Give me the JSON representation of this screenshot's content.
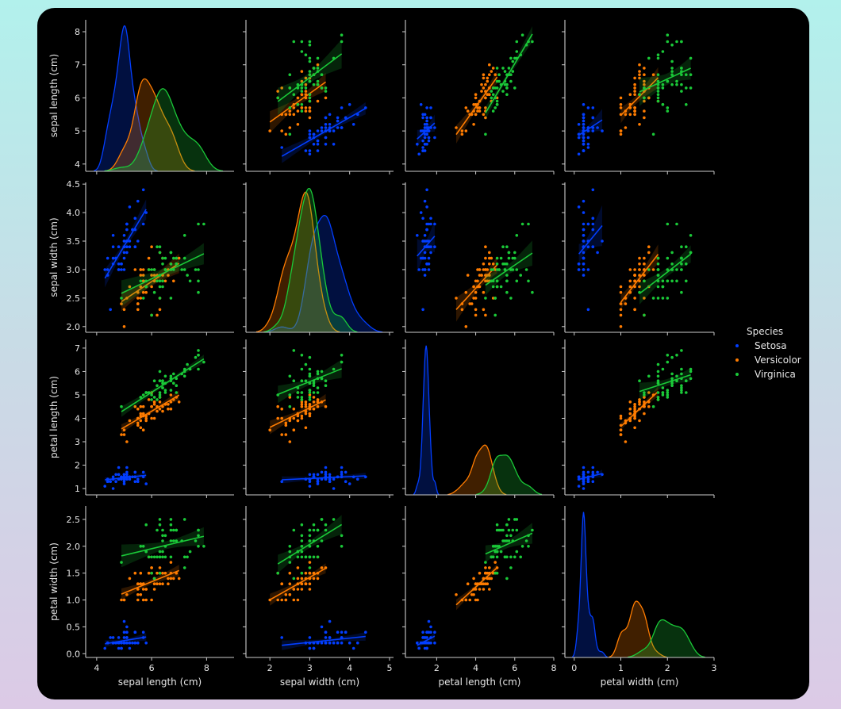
{
  "chart_data": {
    "type": "scatter",
    "kind": "pairplot",
    "diagonal": "kde",
    "regression_lines": true,
    "grid": false,
    "legend": {
      "title": "Species",
      "placement": "right"
    },
    "variables": [
      {
        "label": "sepal length (cm)",
        "ticks": [
          4,
          5,
          6,
          7,
          8
        ],
        "xticks": [
          4,
          6,
          8
        ],
        "lim": [
          3.6,
          9.0
        ],
        "ylim": [
          3.78,
          8.36
        ]
      },
      {
        "label": "sepal width (cm)",
        "ticks": [
          "2.0",
          "2.5",
          "3.0",
          "3.5",
          "4.0",
          "4.5"
        ],
        "xticks": [
          2,
          3,
          4,
          5
        ],
        "lim": [
          1.4,
          5.1
        ],
        "ylim": [
          1.9,
          4.53
        ]
      },
      {
        "label": "petal length (cm)",
        "ticks": [
          1,
          2,
          3,
          4,
          5,
          6,
          7
        ],
        "xticks": [
          2,
          4,
          6,
          8
        ],
        "lim": [
          0.4,
          8.0
        ],
        "ylim": [
          0.73,
          7.37
        ]
      },
      {
        "label": "petal width (cm)",
        "ticks": [
          "0.0",
          "0.5",
          "1.0",
          "1.5",
          "2.0",
          "2.5"
        ],
        "xticks": [
          0,
          1,
          2,
          3
        ],
        "lim": [
          -0.2,
          3.0
        ],
        "ylim": [
          -0.07,
          2.75
        ]
      }
    ],
    "series": [
      {
        "name": "Setosa",
        "color": "#023eff",
        "points": [
          [
            5.1,
            3.5,
            1.4,
            0.2
          ],
          [
            4.9,
            3.0,
            1.4,
            0.2
          ],
          [
            4.7,
            3.2,
            1.3,
            0.2
          ],
          [
            4.6,
            3.1,
            1.5,
            0.2
          ],
          [
            5.0,
            3.6,
            1.4,
            0.2
          ],
          [
            5.4,
            3.9,
            1.7,
            0.4
          ],
          [
            4.6,
            3.4,
            1.4,
            0.3
          ],
          [
            5.0,
            3.4,
            1.5,
            0.2
          ],
          [
            4.4,
            2.9,
            1.4,
            0.2
          ],
          [
            4.9,
            3.1,
            1.5,
            0.1
          ],
          [
            5.4,
            3.7,
            1.5,
            0.2
          ],
          [
            4.8,
            3.4,
            1.6,
            0.2
          ],
          [
            4.8,
            3.0,
            1.4,
            0.1
          ],
          [
            4.3,
            3.0,
            1.1,
            0.1
          ],
          [
            5.8,
            4.0,
            1.2,
            0.2
          ],
          [
            5.7,
            4.4,
            1.5,
            0.4
          ],
          [
            5.4,
            3.9,
            1.3,
            0.4
          ],
          [
            5.1,
            3.5,
            1.4,
            0.3
          ],
          [
            5.7,
            3.8,
            1.7,
            0.3
          ],
          [
            5.1,
            3.8,
            1.5,
            0.3
          ],
          [
            5.4,
            3.4,
            1.7,
            0.2
          ],
          [
            5.1,
            3.7,
            1.5,
            0.4
          ],
          [
            4.6,
            3.6,
            1.0,
            0.2
          ],
          [
            5.1,
            3.3,
            1.7,
            0.5
          ],
          [
            4.8,
            3.4,
            1.9,
            0.2
          ],
          [
            5.0,
            3.0,
            1.6,
            0.2
          ],
          [
            5.0,
            3.4,
            1.6,
            0.4
          ],
          [
            5.2,
            3.5,
            1.5,
            0.2
          ],
          [
            5.2,
            3.4,
            1.4,
            0.2
          ],
          [
            4.7,
            3.2,
            1.6,
            0.2
          ],
          [
            4.8,
            3.1,
            1.6,
            0.2
          ],
          [
            5.4,
            3.4,
            1.5,
            0.4
          ],
          [
            5.2,
            4.1,
            1.5,
            0.1
          ],
          [
            5.5,
            4.2,
            1.4,
            0.2
          ],
          [
            4.9,
            3.1,
            1.5,
            0.1
          ],
          [
            5.0,
            3.2,
            1.2,
            0.2
          ],
          [
            5.5,
            3.5,
            1.3,
            0.2
          ],
          [
            4.9,
            3.1,
            1.5,
            0.1
          ],
          [
            4.4,
            3.0,
            1.3,
            0.2
          ],
          [
            5.1,
            3.4,
            1.5,
            0.2
          ],
          [
            5.0,
            3.5,
            1.3,
            0.3
          ],
          [
            4.5,
            2.3,
            1.3,
            0.3
          ],
          [
            4.4,
            3.2,
            1.3,
            0.2
          ],
          [
            5.0,
            3.5,
            1.6,
            0.6
          ],
          [
            5.1,
            3.8,
            1.9,
            0.4
          ],
          [
            4.8,
            3.0,
            1.4,
            0.3
          ],
          [
            5.1,
            3.8,
            1.6,
            0.2
          ],
          [
            4.6,
            3.2,
            1.4,
            0.2
          ],
          [
            5.3,
            3.7,
            1.5,
            0.2
          ],
          [
            5.0,
            3.3,
            1.4,
            0.2
          ]
        ]
      },
      {
        "name": "Versicolor",
        "color": "#ff7c00",
        "points": [
          [
            7.0,
            3.2,
            4.7,
            1.4
          ],
          [
            6.4,
            3.2,
            4.5,
            1.5
          ],
          [
            6.9,
            3.1,
            4.9,
            1.5
          ],
          [
            5.5,
            2.3,
            4.0,
            1.3
          ],
          [
            6.5,
            2.8,
            4.6,
            1.5
          ],
          [
            5.7,
            2.8,
            4.5,
            1.3
          ],
          [
            6.3,
            3.3,
            4.7,
            1.6
          ],
          [
            4.9,
            2.4,
            3.3,
            1.0
          ],
          [
            6.6,
            2.9,
            4.6,
            1.3
          ],
          [
            5.2,
            2.7,
            3.9,
            1.4
          ],
          [
            5.0,
            2.0,
            3.5,
            1.0
          ],
          [
            5.9,
            3.0,
            4.2,
            1.5
          ],
          [
            6.0,
            2.2,
            4.0,
            1.0
          ],
          [
            6.1,
            2.9,
            4.7,
            1.4
          ],
          [
            5.6,
            2.9,
            3.6,
            1.3
          ],
          [
            6.7,
            3.1,
            4.4,
            1.4
          ],
          [
            5.6,
            3.0,
            4.5,
            1.5
          ],
          [
            5.8,
            2.7,
            4.1,
            1.0
          ],
          [
            6.2,
            2.2,
            4.5,
            1.5
          ],
          [
            5.6,
            2.5,
            3.9,
            1.1
          ],
          [
            5.9,
            3.2,
            4.8,
            1.8
          ],
          [
            6.1,
            2.8,
            4.0,
            1.3
          ],
          [
            6.3,
            2.5,
            4.9,
            1.5
          ],
          [
            6.1,
            2.8,
            4.7,
            1.2
          ],
          [
            6.4,
            2.9,
            4.3,
            1.3
          ],
          [
            6.6,
            3.0,
            4.4,
            1.4
          ],
          [
            6.8,
            2.8,
            4.8,
            1.4
          ],
          [
            6.7,
            3.0,
            5.0,
            1.7
          ],
          [
            6.0,
            2.9,
            4.5,
            1.5
          ],
          [
            5.7,
            2.6,
            3.5,
            1.0
          ],
          [
            5.5,
            2.4,
            3.8,
            1.1
          ],
          [
            5.5,
            2.4,
            3.7,
            1.0
          ],
          [
            5.8,
            2.7,
            3.9,
            1.2
          ],
          [
            6.0,
            2.7,
            5.1,
            1.6
          ],
          [
            5.4,
            3.0,
            4.5,
            1.5
          ],
          [
            6.0,
            3.4,
            4.5,
            1.6
          ],
          [
            6.7,
            3.1,
            4.7,
            1.5
          ],
          [
            6.3,
            2.3,
            4.4,
            1.3
          ],
          [
            5.6,
            3.0,
            4.1,
            1.3
          ],
          [
            5.5,
            2.5,
            4.0,
            1.3
          ],
          [
            5.5,
            2.6,
            4.4,
            1.2
          ],
          [
            6.1,
            3.0,
            4.6,
            1.4
          ],
          [
            5.8,
            2.6,
            4.0,
            1.2
          ],
          [
            5.0,
            2.3,
            3.3,
            1.0
          ],
          [
            5.6,
            2.7,
            4.2,
            1.3
          ],
          [
            5.7,
            3.0,
            4.2,
            1.2
          ],
          [
            5.7,
            2.9,
            4.2,
            1.3
          ],
          [
            6.2,
            2.9,
            4.3,
            1.3
          ],
          [
            5.1,
            2.5,
            3.0,
            1.1
          ],
          [
            5.7,
            2.8,
            4.1,
            1.3
          ]
        ]
      },
      {
        "name": "Virginica",
        "color": "#1ac938",
        "points": [
          [
            6.3,
            3.3,
            6.0,
            2.5
          ],
          [
            5.8,
            2.7,
            5.1,
            1.9
          ],
          [
            7.1,
            3.0,
            5.9,
            2.1
          ],
          [
            6.3,
            2.9,
            5.6,
            1.8
          ],
          [
            6.5,
            3.0,
            5.8,
            2.2
          ],
          [
            7.6,
            3.0,
            6.6,
            2.1
          ],
          [
            4.9,
            2.5,
            4.5,
            1.7
          ],
          [
            7.3,
            2.9,
            6.3,
            1.8
          ],
          [
            6.7,
            2.5,
            5.8,
            1.8
          ],
          [
            7.2,
            3.6,
            6.1,
            2.5
          ],
          [
            6.5,
            3.2,
            5.1,
            2.0
          ],
          [
            6.4,
            2.7,
            5.3,
            1.9
          ],
          [
            6.8,
            3.0,
            5.5,
            2.1
          ],
          [
            5.7,
            2.5,
            5.0,
            2.0
          ],
          [
            5.8,
            2.8,
            5.1,
            2.4
          ],
          [
            6.4,
            3.2,
            5.3,
            2.3
          ],
          [
            6.5,
            3.0,
            5.5,
            1.8
          ],
          [
            7.7,
            3.8,
            6.7,
            2.2
          ],
          [
            7.7,
            2.6,
            6.9,
            2.3
          ],
          [
            6.0,
            2.2,
            5.0,
            1.5
          ],
          [
            6.9,
            3.2,
            5.7,
            2.3
          ],
          [
            5.6,
            2.8,
            4.9,
            2.0
          ],
          [
            7.7,
            2.8,
            6.7,
            2.0
          ],
          [
            6.3,
            2.7,
            4.9,
            1.8
          ],
          [
            6.7,
            3.3,
            5.7,
            2.1
          ],
          [
            7.2,
            3.2,
            6.0,
            1.8
          ],
          [
            6.2,
            2.8,
            4.8,
            1.8
          ],
          [
            6.1,
            3.0,
            4.9,
            1.8
          ],
          [
            6.4,
            2.8,
            5.6,
            2.1
          ],
          [
            7.2,
            3.0,
            5.8,
            1.6
          ],
          [
            7.4,
            2.8,
            6.1,
            1.9
          ],
          [
            7.9,
            3.8,
            6.4,
            2.0
          ],
          [
            6.4,
            2.8,
            5.6,
            2.2
          ],
          [
            6.3,
            2.8,
            5.1,
            1.5
          ],
          [
            6.1,
            2.6,
            5.6,
            1.4
          ],
          [
            7.7,
            3.0,
            6.1,
            2.3
          ],
          [
            6.3,
            3.4,
            5.6,
            2.4
          ],
          [
            6.4,
            3.1,
            5.5,
            1.8
          ],
          [
            6.0,
            3.0,
            4.8,
            1.8
          ],
          [
            6.9,
            3.1,
            5.4,
            2.1
          ],
          [
            6.7,
            3.1,
            5.6,
            2.4
          ],
          [
            6.9,
            3.1,
            5.1,
            2.3
          ],
          [
            5.8,
            2.7,
            5.1,
            1.9
          ],
          [
            6.8,
            3.2,
            5.9,
            2.3
          ],
          [
            6.7,
            3.3,
            5.7,
            2.5
          ],
          [
            6.7,
            3.0,
            5.2,
            2.3
          ],
          [
            6.3,
            2.5,
            5.0,
            1.9
          ],
          [
            6.5,
            3.0,
            5.2,
            2.0
          ],
          [
            6.2,
            3.4,
            5.4,
            2.3
          ],
          [
            5.9,
            3.0,
            5.1,
            1.8
          ]
        ]
      }
    ]
  }
}
